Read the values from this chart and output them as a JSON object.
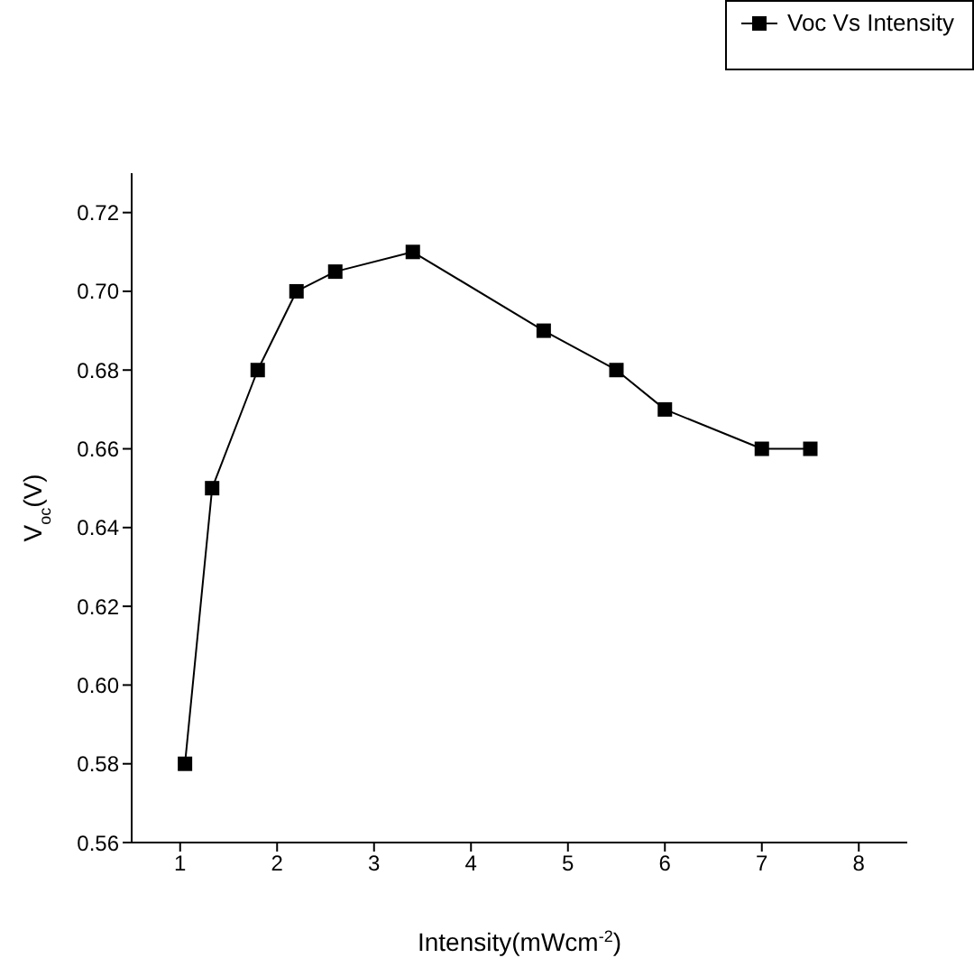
{
  "chart_data": {
    "type": "line",
    "xlabel": "Intensity(mWcm$^{-2}$)",
    "ylabel": "V$_{oc}$(V)",
    "x": [
      1.05,
      1.33,
      1.8,
      2.2,
      2.6,
      3.4,
      4.75,
      5.5,
      6,
      7,
      7.5
    ],
    "series": [
      {
        "name": "Voc Vs Intensity",
        "color": "#000000",
        "values": [
          0.58,
          0.65,
          0.68,
          0.7,
          0.705,
          0.71,
          0.69,
          0.68,
          0.67,
          0.66,
          0.66
        ]
      }
    ],
    "xlim": [
      0.5,
      8.5
    ],
    "xticks": [
      1,
      2,
      3,
      4,
      5,
      6,
      7,
      8
    ],
    "ylim": [
      0.56,
      0.73
    ],
    "yticks": [
      0.56,
      0.58,
      {
        "value": 0.6,
        "label": "0.60"
      },
      0.62,
      0.64,
      0.66,
      0.68,
      {
        "value": 0.7,
        "label": "0.70"
      },
      0.72
    ],
    "grid": false,
    "legend": "top right",
    "marker": "square",
    "line_style": "solid"
  }
}
